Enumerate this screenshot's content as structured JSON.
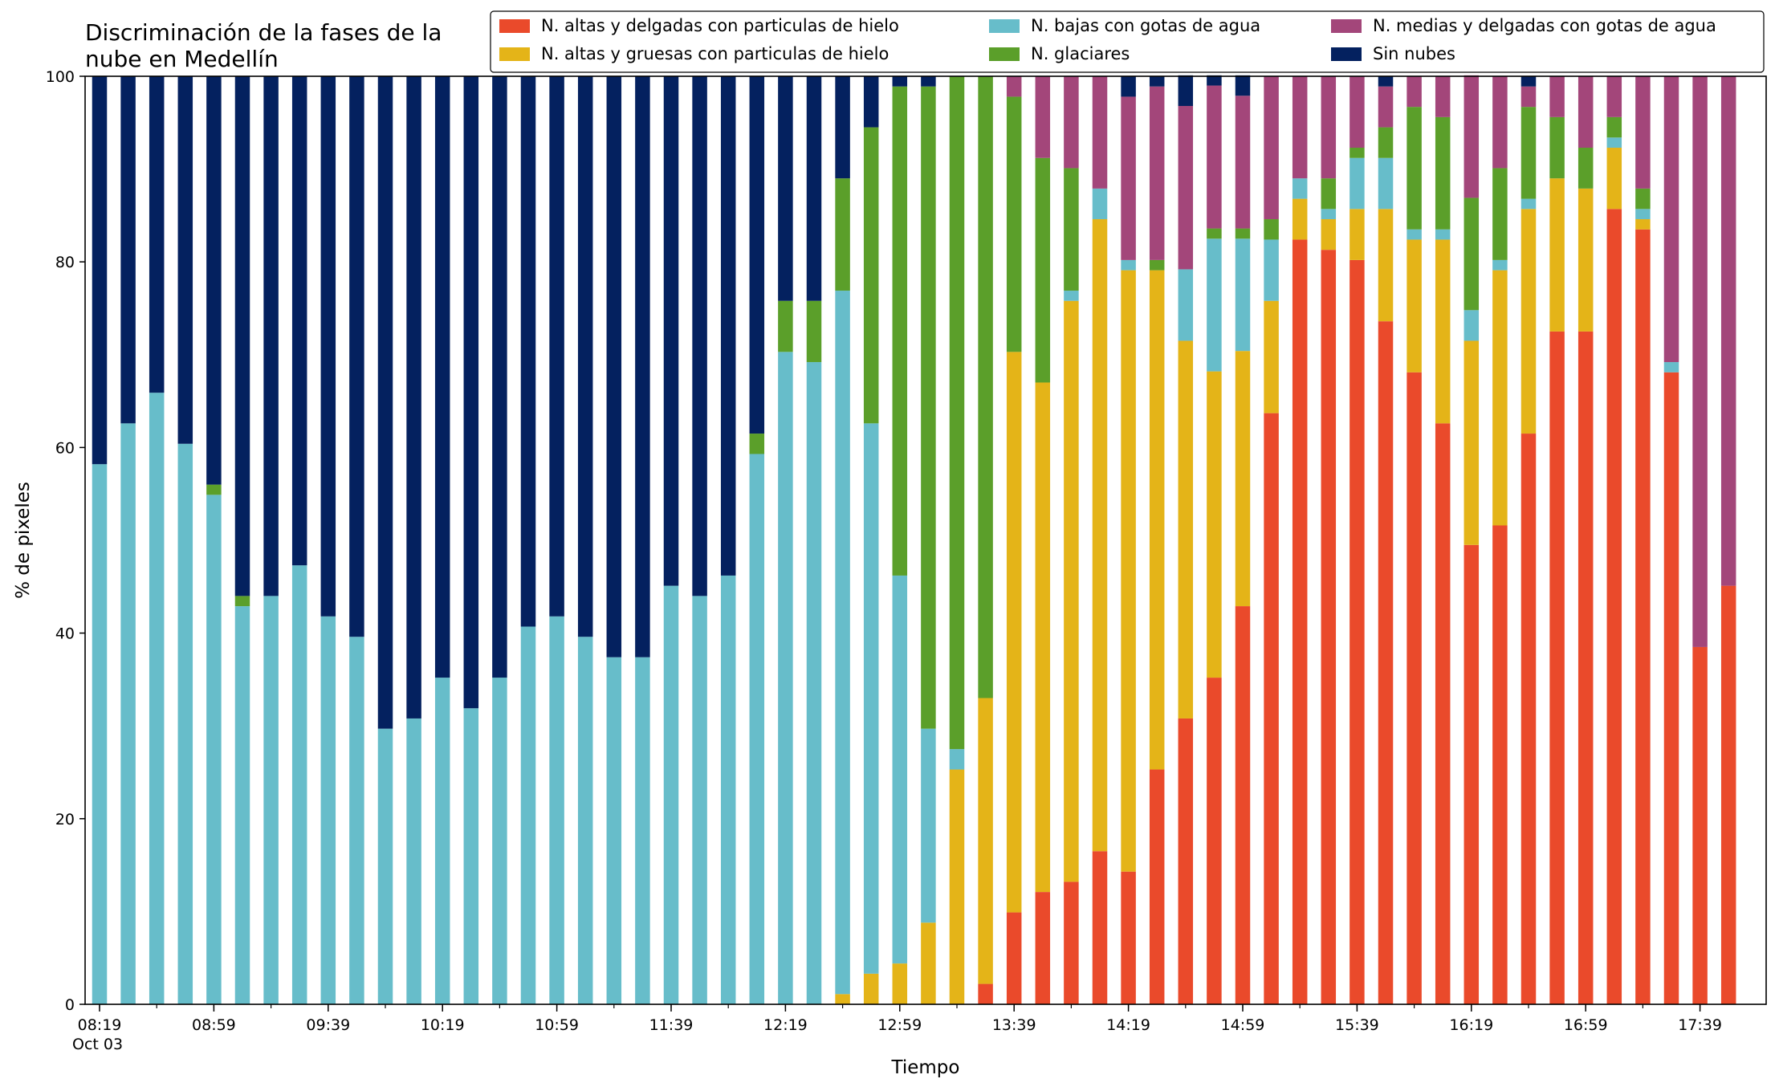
{
  "chart_data": {
    "type": "bar",
    "stacked": true,
    "title_lines": [
      "Discriminación de la fases de la",
      "nube en Medellín"
    ],
    "xlabel": "Tiempo",
    "ylabel": "% de pixeles",
    "ylim": [
      0,
      100
    ],
    "yticks": [
      "0",
      "20",
      "40",
      "60",
      "80",
      "100"
    ],
    "grid": false,
    "legend_position": "top-right",
    "x_start": "2023-10-03 08:19",
    "x_end": "2023-10-03 17:49",
    "x_step_minutes": 10,
    "xtick_labels": [
      "08:19",
      "08:59",
      "09:39",
      "10:19",
      "10:59",
      "11:39",
      "12:19",
      "12:59",
      "13:39",
      "14:19",
      "14:59",
      "15:39",
      "16:19",
      "16:59",
      "17:39"
    ],
    "xtick_sublabel": "Oct 03",
    "series": [
      {
        "name": "N. altas y delgadas con particulas de hielo",
        "color": "#ea4a2b",
        "values": [
          0,
          0,
          0,
          0,
          0,
          0,
          0,
          0,
          0,
          0,
          0,
          0,
          0,
          0,
          0,
          0,
          0,
          0,
          0,
          0,
          0,
          0,
          0,
          0,
          0,
          0,
          0,
          0,
          0,
          0,
          0,
          2.2,
          9.9,
          12.1,
          13.2,
          16.5,
          14.3,
          25.3,
          30.8,
          35.2,
          42.9,
          63.7,
          82.4,
          81.3,
          80.2,
          73.6,
          68.1,
          62.6,
          49.5,
          51.6,
          61.5,
          72.5,
          72.5,
          85.7,
          83.5,
          68.1,
          38.5,
          45.1
        ]
      },
      {
        "name": "N. altas y gruesas con particulas de hielo",
        "color": "#e4b418",
        "values": [
          0,
          0,
          0,
          0,
          0,
          0,
          0,
          0,
          0,
          0,
          0,
          0,
          0,
          0,
          0,
          0,
          0,
          0,
          0,
          0,
          0,
          0,
          0,
          0,
          0,
          0,
          1.1,
          3.3,
          4.4,
          8.8,
          25.3,
          30.8,
          60.4,
          54.9,
          62.6,
          68.1,
          64.8,
          53.8,
          40.7,
          33.0,
          27.5,
          12.1,
          4.4,
          3.3,
          5.5,
          12.1,
          14.3,
          19.8,
          22.0,
          27.5,
          24.2,
          16.5,
          15.4,
          6.6,
          1.1,
          0,
          0,
          0
        ]
      },
      {
        "name": "N. bajas con gotas de agua",
        "color": "#67bdca",
        "values": [
          58.2,
          62.6,
          65.9,
          60.4,
          54.9,
          42.9,
          44.0,
          47.3,
          41.8,
          39.6,
          29.7,
          30.8,
          35.2,
          31.9,
          35.2,
          40.7,
          41.8,
          39.6,
          37.4,
          37.4,
          45.1,
          44.0,
          46.2,
          59.3,
          70.3,
          69.2,
          75.8,
          59.3,
          41.8,
          20.9,
          2.2,
          0,
          0,
          0,
          1.1,
          3.3,
          1.1,
          0,
          7.7,
          14.3,
          12.1,
          6.6,
          2.2,
          1.1,
          5.5,
          5.5,
          1.1,
          1.1,
          3.3,
          1.1,
          1.1,
          0,
          0,
          1.1,
          1.1,
          1.1,
          0,
          0
        ]
      },
      {
        "name": "N. glaciares",
        "color": "#5b9f2a",
        "values": [
          0,
          0,
          0,
          0,
          1.1,
          1.1,
          0,
          0,
          0,
          0,
          0,
          0,
          0,
          0,
          0,
          0,
          0,
          0,
          0,
          0,
          0,
          0,
          0,
          2.2,
          5.5,
          6.6,
          12.1,
          31.9,
          52.7,
          69.2,
          72.5,
          67.0,
          27.5,
          24.2,
          13.2,
          0,
          0,
          1.1,
          0,
          1.1,
          1.1,
          2.2,
          0,
          3.3,
          1.1,
          3.3,
          13.2,
          12.1,
          12.1,
          9.9,
          9.9,
          6.6,
          4.4,
          2.2,
          2.2,
          0,
          0,
          0
        ]
      },
      {
        "name": "N. medias y delgadas con gotas de agua",
        "color": "#a3467a",
        "values": [
          0,
          0,
          0,
          0,
          0,
          0,
          0,
          0,
          0,
          0,
          0,
          0,
          0,
          0,
          0,
          0,
          0,
          0,
          0,
          0,
          0,
          0,
          0,
          0,
          0,
          0,
          0,
          0,
          0,
          0,
          0,
          0,
          2.2,
          8.8,
          9.9,
          12.1,
          17.6,
          18.7,
          17.6,
          15.4,
          14.3,
          15.4,
          11.0,
          11.0,
          7.7,
          4.4,
          3.3,
          4.4,
          13.2,
          9.9,
          2.2,
          4.4,
          7.7,
          4.4,
          12.1,
          30.8,
          61.5,
          54.9
        ]
      },
      {
        "name": "Sin nubes",
        "color": "#04215f",
        "values": [
          41.8,
          37.4,
          34.1,
          39.6,
          44.0,
          56.0,
          56.0,
          52.7,
          58.2,
          60.4,
          70.3,
          69.2,
          64.8,
          68.1,
          64.8,
          59.3,
          58.2,
          60.4,
          62.6,
          62.6,
          54.9,
          56.0,
          53.8,
          38.5,
          24.2,
          24.2,
          11.0,
          5.5,
          1.1,
          1.1,
          0,
          0,
          0,
          0,
          0,
          0,
          2.2,
          1.1,
          3.3,
          1.1,
          2.2,
          0,
          0,
          0,
          0,
          1.1,
          0,
          0,
          0,
          0,
          1.1,
          0,
          0,
          0,
          0,
          0,
          0,
          0
        ]
      }
    ]
  }
}
